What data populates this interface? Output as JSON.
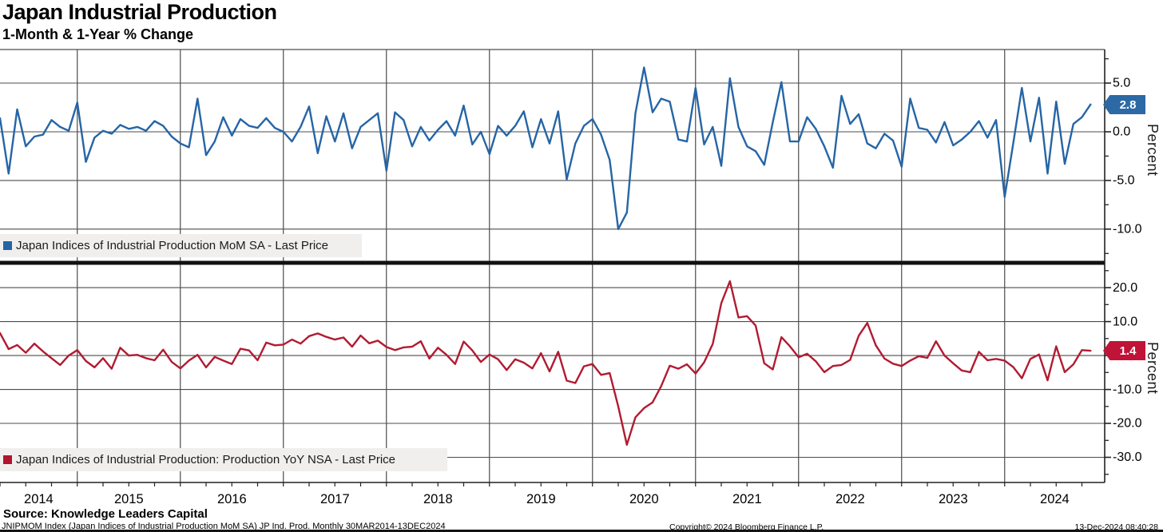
{
  "header": {
    "title": "Japan Industrial Production",
    "subtitle": "1-Month & 1-Year % Change"
  },
  "chart_data": [
    {
      "type": "line",
      "panel": "top",
      "series_name": "Japan Indices of Industrial Production MoM SA - Last Price",
      "line_color": "#2565a6",
      "swatch_color": "#2464a4",
      "badge_color": "#2c69a5",
      "last_price": 2.8,
      "last_price_label": "2.8",
      "ylabel": "Percent",
      "ylim": [
        -13.3,
        8.45
      ],
      "yticks": [
        5.0,
        0.0,
        -5.0,
        -10.0
      ],
      "ytick_labels": [
        "5.0",
        "0.0",
        "-5.0",
        "-10.0"
      ],
      "minor_yticks": [
        7.5,
        2.5,
        -2.5,
        -7.5,
        -12.5
      ],
      "grid": true,
      "legend_position": "bottom-left-strip",
      "values": [
        1.4,
        -4.3,
        2.3,
        -1.5,
        -0.5,
        -0.3,
        1.2,
        0.5,
        0.1,
        3.0,
        -3.1,
        -0.6,
        0.1,
        -0.2,
        0.7,
        0.3,
        0.5,
        0.1,
        1.1,
        0.6,
        -0.5,
        -1.2,
        -1.6,
        3.4,
        -2.4,
        -1.0,
        1.5,
        -0.4,
        1.3,
        0.6,
        0.4,
        1.4,
        0.4,
        0.0,
        -1.0,
        0.5,
        2.6,
        -2.2,
        1.6,
        -1.0,
        1.9,
        -1.7,
        0.5,
        1.2,
        1.9,
        -4.0,
        2.0,
        1.2,
        -1.5,
        0.5,
        -0.9,
        0.2,
        1.1,
        -0.4,
        2.7,
        -1.3,
        0.0,
        -2.3,
        0.6,
        -0.4,
        0.6,
        2.1,
        -1.6,
        1.3,
        -1.2,
        2.1,
        -4.9,
        -1.2,
        0.6,
        1.3,
        -0.3,
        -2.9,
        -10.0,
        -8.3,
        1.9,
        6.6,
        2.0,
        3.4,
        3.1,
        -0.8,
        -1.0,
        4.5,
        -1.3,
        0.5,
        -3.5,
        5.5,
        0.5,
        -1.5,
        -2.0,
        -3.4,
        1.0,
        5.1,
        -1.0,
        -1.0,
        1.5,
        0.3,
        -1.5,
        -3.7,
        3.7,
        0.8,
        1.8,
        -1.2,
        -1.7,
        -0.2,
        -0.9,
        -3.6,
        3.4,
        0.4,
        0.2,
        -1.1,
        1.0,
        -1.4,
        -0.8,
        0.0,
        1.1,
        -0.6,
        1.2,
        -6.7,
        -1.2,
        4.5,
        -1.0,
        3.5,
        -4.3,
        3.1,
        -3.3,
        0.8,
        1.5,
        2.8
      ]
    },
    {
      "type": "line",
      "panel": "bottom",
      "series_name": "Japan Indices of Industrial Production: Production YoY NSA - Last Price",
      "line_color": "#b11b31",
      "swatch_color": "#b2132e",
      "badge_color": "#bf1437",
      "last_price": 1.4,
      "last_price_label": "1.4",
      "ylabel": "Percent",
      "ylim": [
        -37.4,
        26.6
      ],
      "yticks": [
        20.0,
        10.0,
        0.0,
        -10.0,
        -20.0,
        -30.0
      ],
      "ytick_labels": [
        "20.0",
        "10.0",
        "0.0",
        "-10.0",
        "-20.0",
        "-30.0"
      ],
      "minor_yticks": [
        25.0,
        15.0,
        5.0,
        -5.0,
        -15.0,
        -25.0,
        -35.0
      ],
      "grid": true,
      "legend_position": "bottom-left-strip",
      "values": [
        6.6,
        1.9,
        3.1,
        0.8,
        3.5,
        1.2,
        -0.8,
        -2.8,
        0.0,
        1.6,
        -1.6,
        -3.5,
        -0.8,
        -3.9,
        2.3,
        0.0,
        0.2,
        -0.8,
        -1.4,
        1.7,
        -1.9,
        -3.8,
        -1.5,
        0.2,
        -3.5,
        -0.4,
        -1.5,
        -2.5,
        2.0,
        1.5,
        -1.4,
        3.8,
        3.0,
        3.2,
        4.7,
        3.5,
        5.7,
        6.5,
        5.5,
        4.7,
        5.3,
        2.6,
        5.9,
        3.6,
        4.4,
        2.5,
        1.6,
        2.4,
        2.6,
        4.2,
        -0.9,
        2.3,
        0.2,
        -2.5,
        4.1,
        1.5,
        -1.9,
        0.3,
        -1.1,
        -4.3,
        -1.1,
        -2.1,
        -3.8,
        0.7,
        -4.7,
        1.1,
        -7.4,
        -8.1,
        -3.2,
        -2.5,
        -5.7,
        -5.2,
        -15.0,
        -26.3,
        -18.2,
        -15.5,
        -13.8,
        -9.0,
        -3.0,
        -3.9,
        -2.6,
        -5.3,
        -2.0,
        3.4,
        15.4,
        21.9,
        11.2,
        11.6,
        8.8,
        -2.3,
        -4.1,
        5.4,
        2.7,
        -0.5,
        0.5,
        -1.7,
        -4.9,
        -3.1,
        -2.8,
        -1.3,
        5.8,
        9.6,
        3.0,
        -0.9,
        -2.4,
        -3.1,
        -1.5,
        -0.2,
        -0.7,
        4.2,
        0.0,
        -2.3,
        -4.4,
        -4.9,
        1.1,
        -1.4,
        -1.0,
        -1.5,
        -3.4,
        -6.7,
        -1.0,
        0.3,
        -7.3,
        2.7,
        -4.9,
        -2.6,
        1.6,
        1.4
      ]
    }
  ],
  "x_axis": {
    "year_labels": [
      "2014",
      "2015",
      "2016",
      "2017",
      "2018",
      "2019",
      "2020",
      "2021",
      "2022",
      "2023",
      "2024"
    ]
  },
  "style": {
    "grid_color": "#4c4c4c",
    "axis_color": "#222222",
    "legend_bg": "#f0efee"
  },
  "footer": {
    "source": "Source: Knowledge Leaders Capital",
    "ticker_line": "JNIPMOM Index (Japan Indices of Industrial Production MoM SA) JP Ind. Prod.  Monthly 30MAR2014-13DEC2024",
    "copyright": "Copyright© 2024 Bloomberg Finance L.P.",
    "timestamp": "13-Dec-2024 08:40:28"
  }
}
